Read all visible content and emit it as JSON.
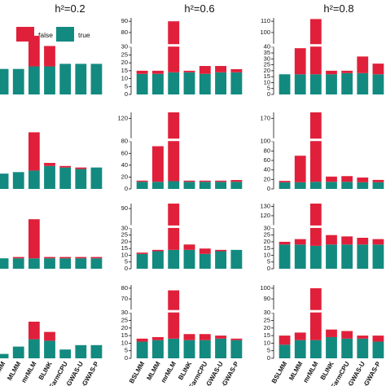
{
  "headers": [
    "h²=0.2",
    "h²=0.6",
    "h²=0.8"
  ],
  "legend": [
    {
      "label": "false",
      "color": "#e0203a"
    },
    {
      "label": "true",
      "color": "#138a80"
    }
  ],
  "colors": {
    "false": "#e0203a",
    "true": "#138a80",
    "axis": "#111111"
  },
  "categories": [
    "BSLMM",
    "MLMM",
    "mrMLM",
    "BLINK",
    "FarmCPU",
    "E-GWAS-U",
    "E-GWAS-P"
  ],
  "chart_data": [
    {
      "type": "bar",
      "stacked": true,
      "column": "h²=0.2",
      "row": 1,
      "axis_visible": false,
      "categories": [
        "BSLMM",
        "MLMM",
        "mrMLM",
        "BLINK",
        "FarmCPU",
        "E-GWAS-U",
        "E-GWAS-P"
      ],
      "series": [
        {
          "name": "true",
          "values": [
            10,
            10,
            11,
            11,
            12,
            12,
            12
          ]
        },
        {
          "name": "false",
          "values": [
            0,
            0,
            12,
            8,
            0,
            0,
            0
          ]
        }
      ],
      "ylim": [
        0,
        30
      ]
    },
    {
      "type": "bar",
      "stacked": true,
      "column": "h²=0.6",
      "row": 1,
      "axis_visible": true,
      "broken_axis": true,
      "categories": [
        "BSLMM",
        "MLMM",
        "mrMLM",
        "BLINK",
        "FarmCPU",
        "E-GWAS-U",
        "E-GWAS-P"
      ],
      "yticks": [
        "0",
        "5",
        "10",
        "15",
        "20",
        "25",
        "30",
        "80",
        "90"
      ],
      "series": [
        {
          "name": "true",
          "values": [
            13,
            13,
            14,
            14,
            13,
            14,
            14
          ]
        },
        {
          "name": "false",
          "values": [
            2,
            2,
            76,
            1,
            5,
            4,
            2
          ]
        }
      ]
    },
    {
      "type": "bar",
      "stacked": true,
      "column": "h²=0.8",
      "row": 1,
      "axis_visible": true,
      "broken_axis": true,
      "categories": [
        "BSLMM",
        "MLMM",
        "mrMLM",
        "BLINK",
        "FarmCPU",
        "E-GWAS-U",
        "E-GWAS-P"
      ],
      "yticks": [
        "0",
        "5",
        "10",
        "15",
        "20",
        "25",
        "30",
        "35",
        "40",
        "100",
        "110"
      ],
      "series": [
        {
          "name": "true",
          "values": [
            17,
            17,
            17,
            17,
            18,
            18,
            17
          ]
        },
        {
          "name": "false",
          "values": [
            0,
            22,
            95,
            3,
            2,
            14,
            9
          ]
        }
      ]
    },
    {
      "type": "bar",
      "stacked": true,
      "column": "h²=0.2",
      "row": 2,
      "axis_visible": false,
      "categories": [
        "BSLMM",
        "MLMM",
        "mrMLM",
        "BLINK",
        "FarmCPU",
        "E-GWAS-U",
        "E-GWAS-P"
      ],
      "series": [
        {
          "name": "true",
          "values": [
            10,
            11,
            12,
            15,
            14,
            13,
            14
          ]
        },
        {
          "name": "false",
          "values": [
            0,
            0,
            25,
            2,
            1,
            1,
            0
          ]
        }
      ],
      "ylim": [
        0,
        50
      ]
    },
    {
      "type": "bar",
      "stacked": true,
      "column": "h²=0.6",
      "row": 2,
      "axis_visible": true,
      "broken_axis": true,
      "categories": [
        "BSLMM",
        "MLMM",
        "mrMLM",
        "BLINK",
        "FarmCPU",
        "E-GWAS-U",
        "E-GWAS-P"
      ],
      "yticks": [
        "0",
        "20",
        "40",
        "60",
        "80",
        "120"
      ],
      "series": [
        {
          "name": "true",
          "values": [
            12,
            12,
            13,
            12,
            12,
            12,
            12
          ]
        },
        {
          "name": "false",
          "values": [
            2,
            60,
            120,
            2,
            2,
            2,
            3
          ]
        }
      ]
    },
    {
      "type": "bar",
      "stacked": true,
      "column": "h²=0.8",
      "row": 2,
      "axis_visible": true,
      "broken_axis": true,
      "categories": [
        "BSLMM",
        "MLMM",
        "mrMLM",
        "BLINK",
        "FarmCPU",
        "E-GWAS-U",
        "E-GWAS-P"
      ],
      "yticks": [
        "0",
        "20",
        "40",
        "60",
        "80",
        "100",
        "170"
      ],
      "series": [
        {
          "name": "true",
          "values": [
            14,
            14,
            15,
            15,
            15,
            14,
            14
          ]
        },
        {
          "name": "false",
          "values": [
            3,
            56,
            165,
            11,
            12,
            10,
            5
          ]
        }
      ]
    },
    {
      "type": "bar",
      "stacked": true,
      "column": "h²=0.2",
      "row": 3,
      "axis_visible": false,
      "categories": [
        "BSLMM",
        "MLMM",
        "mrMLM",
        "BLINK",
        "FarmCPU",
        "E-GWAS-U",
        "E-GWAS-P"
      ],
      "series": [
        {
          "name": "true",
          "values": [
            8,
            8,
            8,
            8,
            8,
            8,
            8
          ]
        },
        {
          "name": "false",
          "values": [
            0,
            1,
            30,
            1,
            1,
            1,
            1
          ]
        }
      ],
      "ylim": [
        0,
        50
      ]
    },
    {
      "type": "bar",
      "stacked": true,
      "column": "h²=0.6",
      "row": 3,
      "axis_visible": true,
      "broken_axis": true,
      "categories": [
        "BSLMM",
        "MLMM",
        "mrMLM",
        "BLINK",
        "FarmCPU",
        "E-GWAS-U",
        "E-GWAS-P"
      ],
      "yticks": [
        "0",
        "5",
        "10",
        "15",
        "20",
        "25",
        "30",
        "90"
      ],
      "series": [
        {
          "name": "true",
          "values": [
            11,
            13,
            14,
            14,
            11,
            13,
            14
          ]
        },
        {
          "name": "false",
          "values": [
            1,
            1,
            86,
            4,
            4,
            1,
            0
          ]
        }
      ]
    },
    {
      "type": "bar",
      "stacked": true,
      "column": "h²=0.8",
      "row": 3,
      "axis_visible": true,
      "broken_axis": true,
      "categories": [
        "BSLMM",
        "MLMM",
        "mrMLM",
        "BLINK",
        "FarmCPU",
        "E-GWAS-U",
        "E-GWAS-P"
      ],
      "yticks": [
        "0",
        "5",
        "10",
        "15",
        "20",
        "25",
        "30",
        "120",
        "130"
      ],
      "series": [
        {
          "name": "true",
          "values": [
            18,
            18,
            17,
            18,
            18,
            18,
            18
          ]
        },
        {
          "name": "false",
          "values": [
            2,
            4,
            118,
            7,
            6,
            5,
            4
          ]
        }
      ]
    },
    {
      "type": "bar",
      "stacked": true,
      "column": "h²=0.2",
      "row": 4,
      "axis_visible": false,
      "categories": [
        "BSLMM",
        "MLMM",
        "mrMLM",
        "BLINK",
        "FarmCPU",
        "E-GWAS-U",
        "E-GWAS-P"
      ],
      "series": [
        {
          "name": "true",
          "values": [
            3,
            8,
            13,
            12,
            6,
            9,
            9
          ]
        },
        {
          "name": "false",
          "values": [
            0,
            0,
            12,
            6,
            0,
            0,
            0
          ]
        }
      ],
      "ylim": [
        0,
        50
      ]
    },
    {
      "type": "bar",
      "stacked": true,
      "column": "h²=0.6",
      "row": 4,
      "axis_visible": true,
      "broken_axis": true,
      "categories": [
        "BSLMM",
        "MLMM",
        "mrMLM",
        "BLINK",
        "FarmCPU",
        "E-GWAS-U",
        "E-GWAS-P"
      ],
      "yticks": [
        "0",
        "5",
        "10",
        "15",
        "20",
        "25",
        "30",
        "70",
        "80"
      ],
      "series": [
        {
          "name": "true",
          "values": [
            11,
            12,
            13,
            12,
            12,
            13,
            12
          ]
        },
        {
          "name": "false",
          "values": [
            2,
            2,
            65,
            4,
            4,
            2,
            1
          ]
        }
      ]
    },
    {
      "type": "bar",
      "stacked": true,
      "column": "h²=0.8",
      "row": 4,
      "axis_visible": true,
      "broken_axis": true,
      "categories": [
        "BSLMM",
        "MLMM",
        "mrMLM",
        "BLINK",
        "FarmCPU",
        "E-GWAS-U",
        "E-GWAS-P"
      ],
      "yticks": [
        "0",
        "5",
        "10",
        "15",
        "20",
        "25",
        "30",
        "90",
        "100"
      ],
      "series": [
        {
          "name": "true",
          "values": [
            9,
            12,
            12,
            14,
            13,
            13,
            11
          ]
        },
        {
          "name": "false",
          "values": [
            6,
            5,
            88,
            5,
            5,
            2,
            4
          ]
        }
      ]
    }
  ]
}
